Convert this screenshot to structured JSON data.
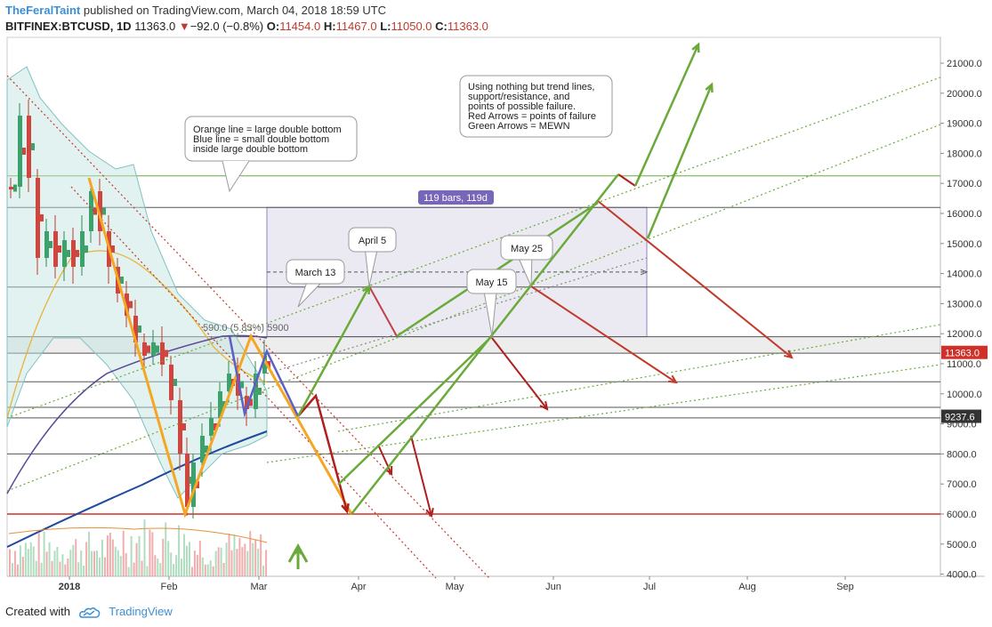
{
  "header": {
    "author": "TheFeralTaint",
    "published": "published on TradingView.com, March 04, 2018 18:59 UTC",
    "symbol": "BITFINEX:BTCUSD, 1D",
    "last": "11363.0",
    "change": "−92.0 (−0.8%)",
    "o_label": "O:",
    "o_value": "11454.0",
    "h_label": "H:",
    "h_value": "11467.0",
    "l_label": "L:",
    "l_value": "11050.0",
    "c_label": "C:",
    "c_value": "11363.0"
  },
  "footer": {
    "created_with": "Created with",
    "brand": "TradingView"
  },
  "colors": {
    "orange": "#f5a623",
    "blue": "#5b5fc7",
    "green": "#6aaa3a",
    "red": "#b01e1e",
    "axis": "#555555"
  },
  "chart_data": {
    "type": "candlestick",
    "y_axis": {
      "ticks": [
        "4000.0",
        "5000.0",
        "6000.0",
        "7000.0",
        "8000.0",
        "9000.0",
        "10000.0",
        "11000.0",
        "12000.0",
        "13000.0",
        "14000.0",
        "15000.0",
        "16000.0",
        "17000.0",
        "18000.0",
        "19000.0",
        "20000.0",
        "21000.0"
      ],
      "ylim": [
        4000,
        22000
      ]
    },
    "x_axis": {
      "ticks": [
        "2018",
        "Feb",
        "Mar",
        "Apr",
        "May",
        "Jun",
        "Jul",
        "Aug",
        "Sep"
      ]
    },
    "price_labels": [
      {
        "text": "11363.0",
        "value": 11363
      },
      {
        "text": "9237.6",
        "value": 9237.6
      }
    ],
    "horizontal_levels": [
      17250,
      16200,
      13550,
      11900,
      11350,
      10400,
      9550,
      9200,
      8000,
      6000
    ],
    "annotations": {
      "notes": [
        {
          "lines": [
            "Orange line = large double bottom",
            "Blue line = small double bottom",
            "inside large double bottom"
          ]
        },
        {
          "lines": [
            "Using nothing but trend lines,",
            "support/resistance, and",
            "points of possible failure.",
            "Red Arrows = points of failure",
            "Green Arrows = MEWN"
          ]
        }
      ],
      "callouts": [
        "March 13",
        "April 5",
        "May 15",
        "May 25"
      ],
      "range_label": "119 bars, 119d",
      "measure_label": "590.0 (5.83%) 5900"
    }
  }
}
